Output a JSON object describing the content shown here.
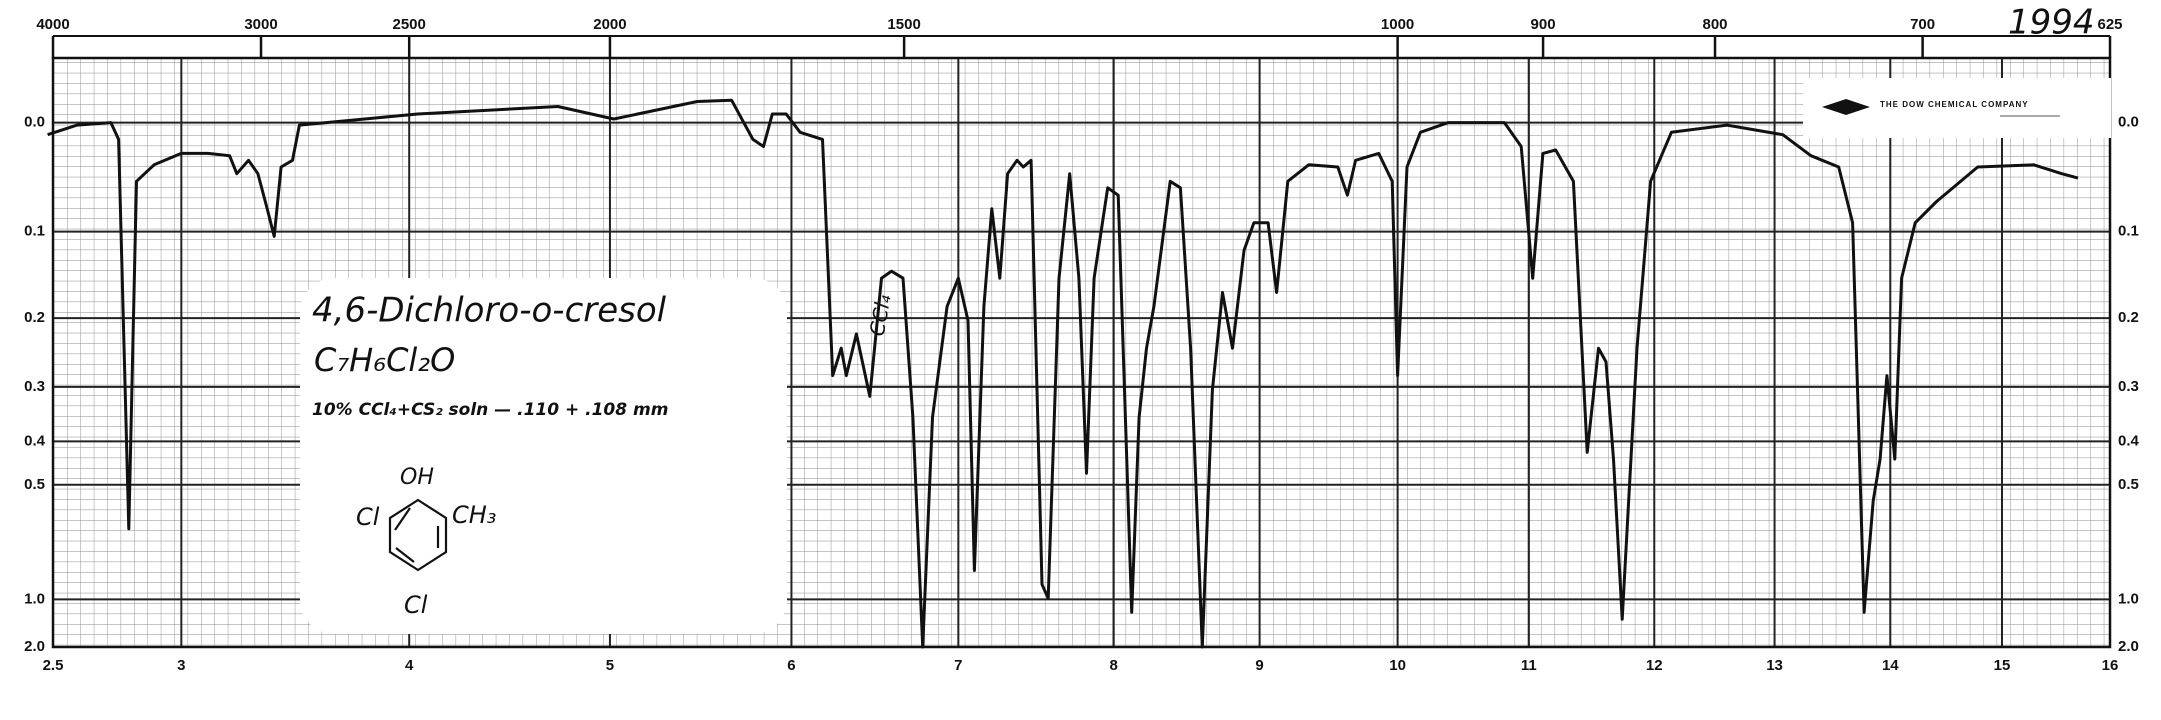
{
  "chart_data": {
    "type": "line",
    "title": "4,6-Dichloro-o-cresol",
    "formula": "C₇H₆Cl₂O",
    "note": "10% CCl₄+CS₂ soln — .110 + .108 mm",
    "structure_labels": [
      "OH",
      "CH₃",
      "Cl",
      "Cl"
    ],
    "band_label": "CCl₄",
    "spectrum_number": "1994",
    "company": "THE DOW CHEMICAL COMPANY",
    "color": "#111111",
    "xscale": "sqrt",
    "yscale": "absorbance",
    "x2": "wavenumber",
    "grid": true,
    "xlim": [
      2.5,
      16
    ],
    "xticks": [
      2.5,
      3,
      4,
      5,
      6,
      7,
      8,
      9,
      10,
      11,
      12,
      13,
      14,
      15,
      16
    ],
    "x2ticks": [
      4000,
      3000,
      2500,
      2000,
      1500,
      1000,
      900,
      800,
      700,
      625
    ],
    "ylim": [
      2,
      -0.05
    ],
    "yticks": [
      {
        "value": 0,
        "label": "0.0"
      },
      0.1,
      0.2,
      0.3,
      0.4,
      0.5,
      {
        "value": 1,
        "label": "1.0"
      },
      {
        "value": 2,
        "label": "2.0"
      }
    ],
    "x": [
      2.48,
      2.59,
      2.72,
      2.75,
      2.79,
      2.82,
      2.89,
      3.0,
      3.11,
      3.2,
      3.23,
      3.28,
      3.32,
      3.36,
      3.39,
      3.42,
      3.47,
      3.5,
      4.04,
      4.73,
      5.02,
      5.47,
      5.66,
      5.78,
      5.84,
      5.89,
      5.97,
      6.05,
      6.18,
      6.24,
      6.29,
      6.32,
      6.38,
      6.46,
      6.53,
      6.59,
      6.66,
      6.72,
      6.78,
      6.84,
      6.93,
      7.0,
      7.06,
      7.1,
      7.16,
      7.21,
      7.26,
      7.31,
      7.37,
      7.41,
      7.46,
      7.53,
      7.57,
      7.64,
      7.71,
      7.77,
      7.82,
      7.87,
      7.96,
      8.03,
      8.12,
      8.17,
      8.22,
      8.27,
      8.38,
      8.45,
      8.52,
      8.6,
      8.67,
      8.74,
      8.81,
      8.89,
      8.96,
      9.06,
      9.12,
      9.2,
      9.35,
      9.56,
      9.63,
      9.69,
      9.86,
      9.96,
      10.0,
      10.07,
      10.17,
      10.38,
      10.81,
      10.94,
      11.03,
      11.11,
      11.21,
      11.35,
      11.46,
      11.55,
      11.61,
      11.67,
      11.74,
      11.86,
      11.97,
      12.14,
      12.6,
      13.07,
      13.31,
      13.55,
      13.67,
      13.77,
      13.85,
      13.91,
      13.97,
      14.04,
      14.1,
      14.22,
      14.41,
      14.78,
      15.29,
      15.55,
      15.7
    ],
    "values": [
      0.01,
      0.002,
      0,
      0.014,
      0.632,
      0.051,
      0.036,
      0.026,
      0.026,
      0.028,
      0.044,
      0.032,
      0.044,
      0.077,
      0.105,
      0.038,
      0.032,
      0.002,
      -0.007,
      -0.013,
      -0.003,
      -0.017,
      -0.018,
      0.014,
      0.02,
      -0.007,
      -0.007,
      0.008,
      0.014,
      0.282,
      0.241,
      0.282,
      0.221,
      0.316,
      0.151,
      0.143,
      0.151,
      0.353,
      2.0,
      0.353,
      0.185,
      0.151,
      0.203,
      0.811,
      0.185,
      0.077,
      0.151,
      0.044,
      0.032,
      0.038,
      0.032,
      0.892,
      0.992,
      0.151,
      0.044,
      0.151,
      0.471,
      0.151,
      0.057,
      0.064,
      1.121,
      0.353,
      0.241,
      0.185,
      0.051,
      0.057,
      0.241,
      2.0,
      0.305,
      0.168,
      0.241,
      0.12,
      0.091,
      0.091,
      0.168,
      0.051,
      0.036,
      0.038,
      0.064,
      0.032,
      0.026,
      0.051,
      0.282,
      0.038,
      0.008,
      0,
      0,
      0.02,
      0.151,
      0.026,
      0.023,
      0.051,
      0.423,
      0.241,
      0.261,
      0.438,
      1.204,
      0.241,
      0.051,
      0.008,
      0.002,
      0.01,
      0.028,
      0.038,
      0.091,
      1.121,
      0.544,
      0.438,
      0.282,
      0.438,
      0.151,
      0.091,
      0.07,
      0.038,
      0.036,
      0.044,
      0.048
    ]
  }
}
